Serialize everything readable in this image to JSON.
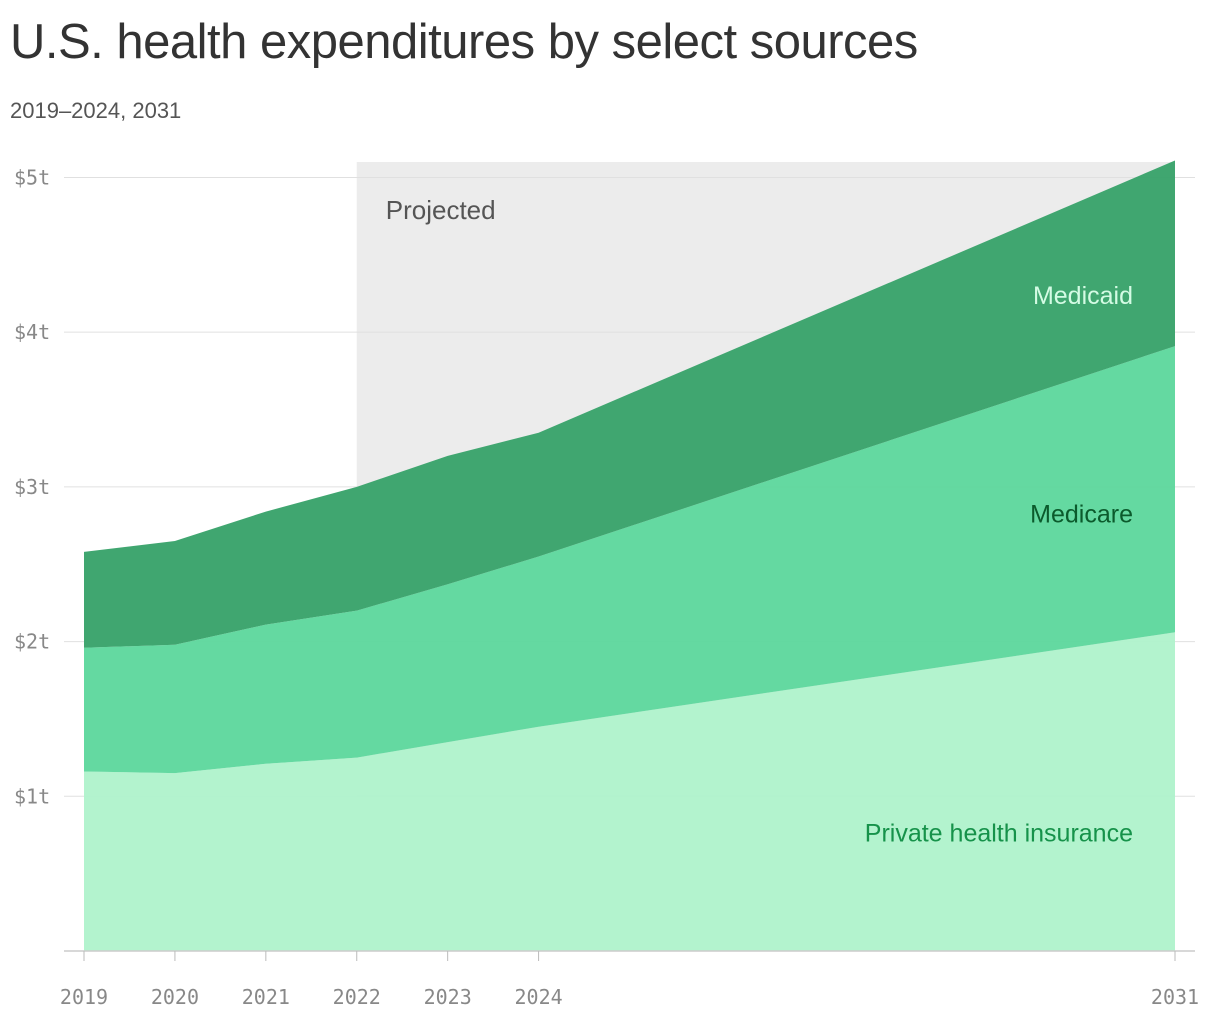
{
  "title": "U.S. health expenditures by select sources",
  "subtitle": "2019–2024, 2031",
  "projected_label": "Projected",
  "colors": {
    "private": "#b0f2cc",
    "medicare": "#5fd89e",
    "medicaid": "#3aa36b",
    "projected_band": "#ececec",
    "grid": "#e0e0e0",
    "medicaid_label": "#d4fbe4",
    "medicare_label": "#0b5a2c",
    "private_label": "#16924a"
  },
  "chart_data": {
    "type": "area",
    "stacked": true,
    "x": [
      2019,
      2020,
      2021,
      2022,
      2023,
      2024,
      2031
    ],
    "x_tick_labels": [
      "2019",
      "2020",
      "2021",
      "2022",
      "2023",
      "2024",
      "2031"
    ],
    "y_ticks": [
      1,
      2,
      3,
      4,
      5
    ],
    "y_tick_labels": [
      "$1t",
      "$2t",
      "$3t",
      "$4t",
      "$5t"
    ],
    "ylim": [
      0,
      5.1
    ],
    "projected_from": 2022,
    "series": [
      {
        "name": "Private health insurance",
        "values": [
          1.16,
          1.15,
          1.21,
          1.25,
          1.35,
          1.45,
          2.06
        ]
      },
      {
        "name": "Medicare",
        "values": [
          0.8,
          0.83,
          0.9,
          0.95,
          1.02,
          1.1,
          1.85
        ]
      },
      {
        "name": "Medicaid",
        "values": [
          0.62,
          0.67,
          0.73,
          0.8,
          0.83,
          0.8,
          1.2
        ]
      }
    ]
  }
}
